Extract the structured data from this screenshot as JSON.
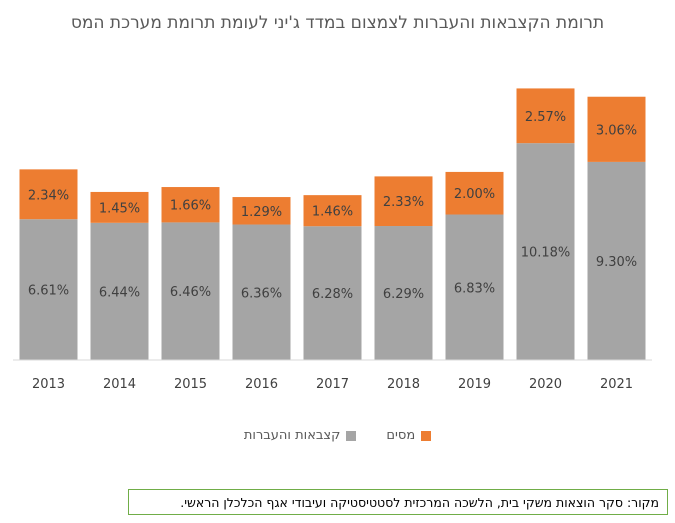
{
  "chart_data": {
    "type": "bar",
    "stacked": true,
    "title": "תרומת הקצבאות והעברות לצמצום במדד ג'יני לעומת תרומת מערכת המס",
    "categories": [
      "2013",
      "2014",
      "2015",
      "2016",
      "2017",
      "2018",
      "2019",
      "2020",
      "2021"
    ],
    "series": [
      {
        "name": "קצבאות והעברות",
        "color": "#a5a5a5",
        "values": [
          6.61,
          6.44,
          6.46,
          6.36,
          6.28,
          6.29,
          6.83,
          10.18,
          9.3
        ],
        "labels": [
          "6.61%",
          "6.44%",
          "6.46%",
          "6.36%",
          "6.28%",
          "6.29%",
          "6.83%",
          "10.18%",
          "9.30%"
        ]
      },
      {
        "name": "מסים",
        "color": "#ed7d31",
        "values": [
          2.34,
          1.45,
          1.66,
          1.29,
          1.46,
          2.33,
          2.0,
          2.57,
          3.06
        ],
        "labels": [
          "2.34%",
          "1.45%",
          "1.66%",
          "1.29%",
          "1.46%",
          "2.33%",
          "2.00%",
          "2.57%",
          "3.06%"
        ]
      }
    ],
    "legend_position": "bottom",
    "grid": false
  },
  "source_note": "מקור: סקר הוצאות משקי בית, הלשכה המרכזית לסטטיסטיקה ועיבודי אגף הכלכלן הראשי."
}
